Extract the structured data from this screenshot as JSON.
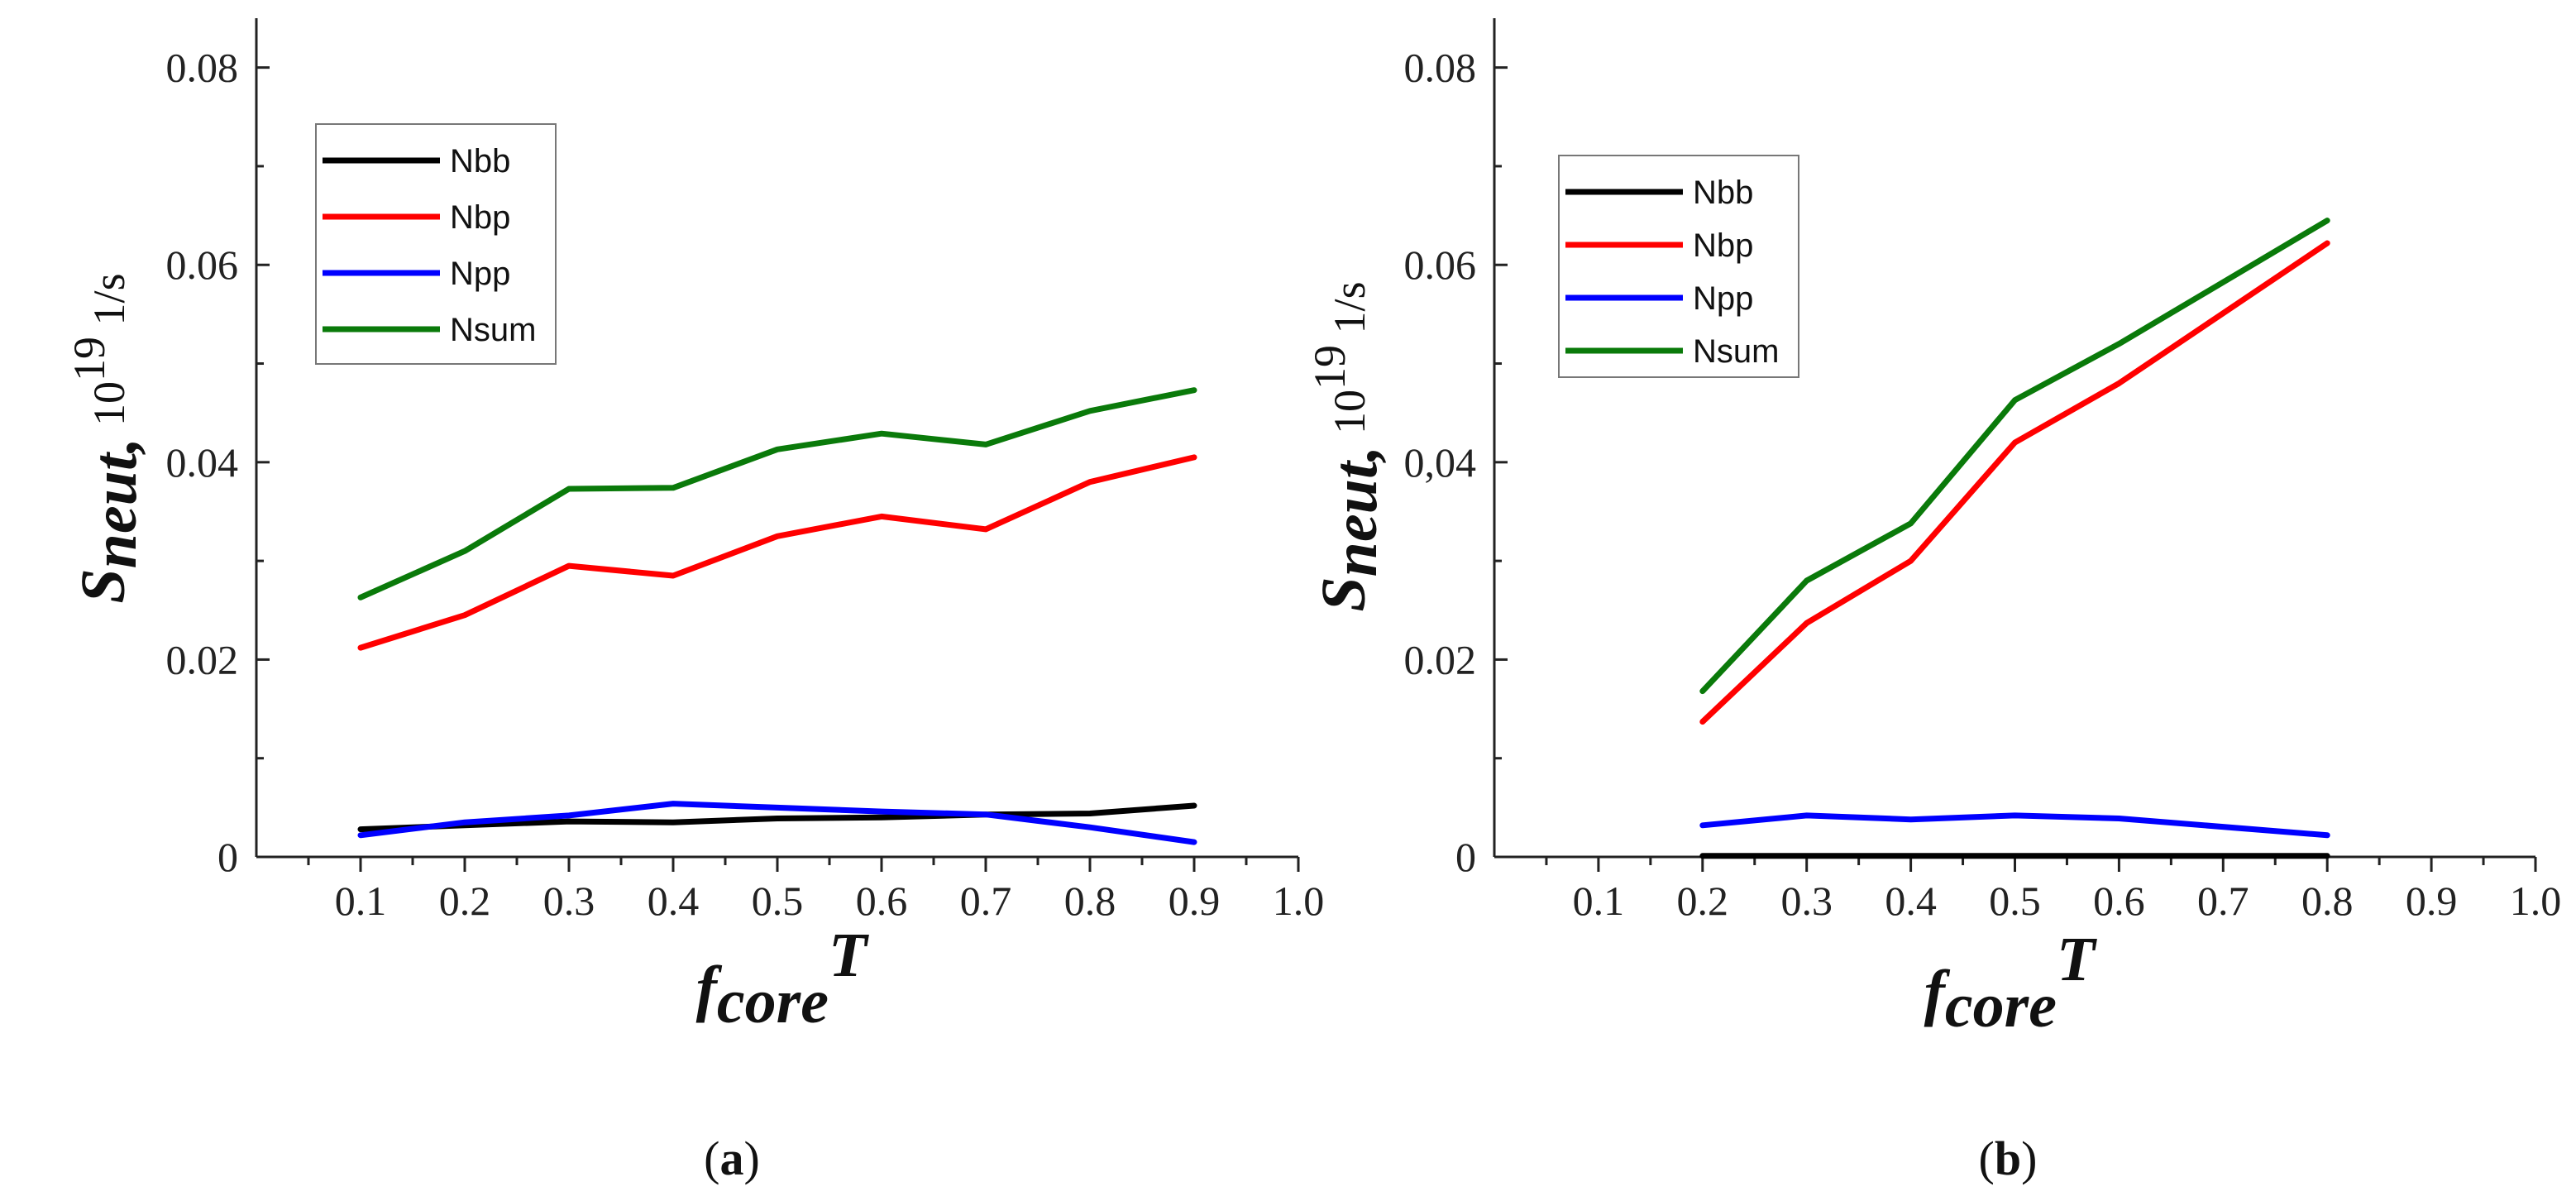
{
  "chart_data": [
    {
      "type": "line",
      "panel_label": {
        "open": "(",
        "letter": "a",
        "close": ")"
      },
      "xlabel": {
        "main": "f",
        "sub": "core",
        "sup": "T"
      },
      "ylabel": {
        "main": "S",
        "sub": "neut,",
        "rest": "10",
        "sup": "19",
        "unit": " 1/s"
      },
      "xlim": [
        0.0,
        1.0
      ],
      "ylim": [
        0.0,
        0.085
      ],
      "x_ticks": [
        "0.1",
        "0.2",
        "0.3",
        "0.4",
        "0.5",
        "0.6",
        "0.7",
        "0.8",
        "0.9",
        "1.0"
      ],
      "y_ticks": [
        "0",
        "0.02",
        "0.04",
        "0.06",
        "0.08"
      ],
      "legend_position": "top-left",
      "series": [
        {
          "name": "Nbb",
          "color": "#000000",
          "x": [
            0.1,
            0.2,
            0.3,
            0.4,
            0.5,
            0.6,
            0.7,
            0.8,
            0.9
          ],
          "y": [
            0.0028,
            0.0032,
            0.0036,
            0.0035,
            0.0039,
            0.004,
            0.0043,
            0.0044,
            0.0052
          ]
        },
        {
          "name": "Nbp",
          "color": "#ff0000",
          "x": [
            0.1,
            0.2,
            0.3,
            0.4,
            0.5,
            0.6,
            0.7,
            0.8,
            0.9
          ],
          "y": [
            0.0212,
            0.0245,
            0.0295,
            0.0285,
            0.0325,
            0.0345,
            0.0332,
            0.038,
            0.0405
          ]
        },
        {
          "name": "Npp",
          "color": "#0000ff",
          "x": [
            0.1,
            0.2,
            0.3,
            0.4,
            0.5,
            0.6,
            0.7,
            0.8,
            0.9
          ],
          "y": [
            0.0022,
            0.0035,
            0.0042,
            0.0054,
            0.005,
            0.0046,
            0.0043,
            0.003,
            0.0015
          ]
        },
        {
          "name": "Nsum",
          "color": "#0a7a0a",
          "x": [
            0.1,
            0.2,
            0.3,
            0.4,
            0.5,
            0.6,
            0.7,
            0.8,
            0.9
          ],
          "y": [
            0.0263,
            0.031,
            0.0373,
            0.0374,
            0.0413,
            0.0429,
            0.0418,
            0.0452,
            0.0473
          ]
        }
      ]
    },
    {
      "type": "line",
      "panel_label": {
        "open": "(",
        "letter": "b",
        "close": ")"
      },
      "xlabel": {
        "main": "f",
        "sub": "core",
        "sup": "T"
      },
      "ylabel": {
        "main": "S",
        "sub": "neut,",
        "rest": "10",
        "sup": "19",
        "unit": " 1/s"
      },
      "xlim": [
        0.0,
        1.0
      ],
      "ylim": [
        0.0,
        0.085
      ],
      "x_ticks": [
        "0.1",
        "0.2",
        "0.3",
        "0.4",
        "0.5",
        "0.6",
        "0.7",
        "0.8",
        "0.9",
        "1.0"
      ],
      "y_ticks": [
        "0",
        "0.02",
        "0,04",
        "0.06",
        "0.08"
      ],
      "legend_position": "top-left",
      "series": [
        {
          "name": "Nbb",
          "color": "#000000",
          "x": [
            0.2,
            0.3,
            0.4,
            0.5,
            0.6,
            0.8
          ],
          "y": [
            0.0001,
            0.0001,
            0.0001,
            0.0001,
            0.0001,
            0.0001
          ]
        },
        {
          "name": "Nbp",
          "color": "#ff0000",
          "x": [
            0.2,
            0.3,
            0.4,
            0.5,
            0.6,
            0.8
          ],
          "y": [
            0.0137,
            0.0237,
            0.03,
            0.042,
            0.048,
            0.0622
          ]
        },
        {
          "name": "Npp",
          "color": "#0000ff",
          "x": [
            0.2,
            0.3,
            0.4,
            0.5,
            0.6,
            0.8
          ],
          "y": [
            0.0032,
            0.0042,
            0.0038,
            0.0042,
            0.0039,
            0.0022
          ]
        },
        {
          "name": "Nsum",
          "color": "#0a7a0a",
          "x": [
            0.2,
            0.3,
            0.4,
            0.5,
            0.6,
            0.8
          ],
          "y": [
            0.0168,
            0.028,
            0.0338,
            0.0463,
            0.052,
            0.0645
          ]
        }
      ]
    }
  ]
}
